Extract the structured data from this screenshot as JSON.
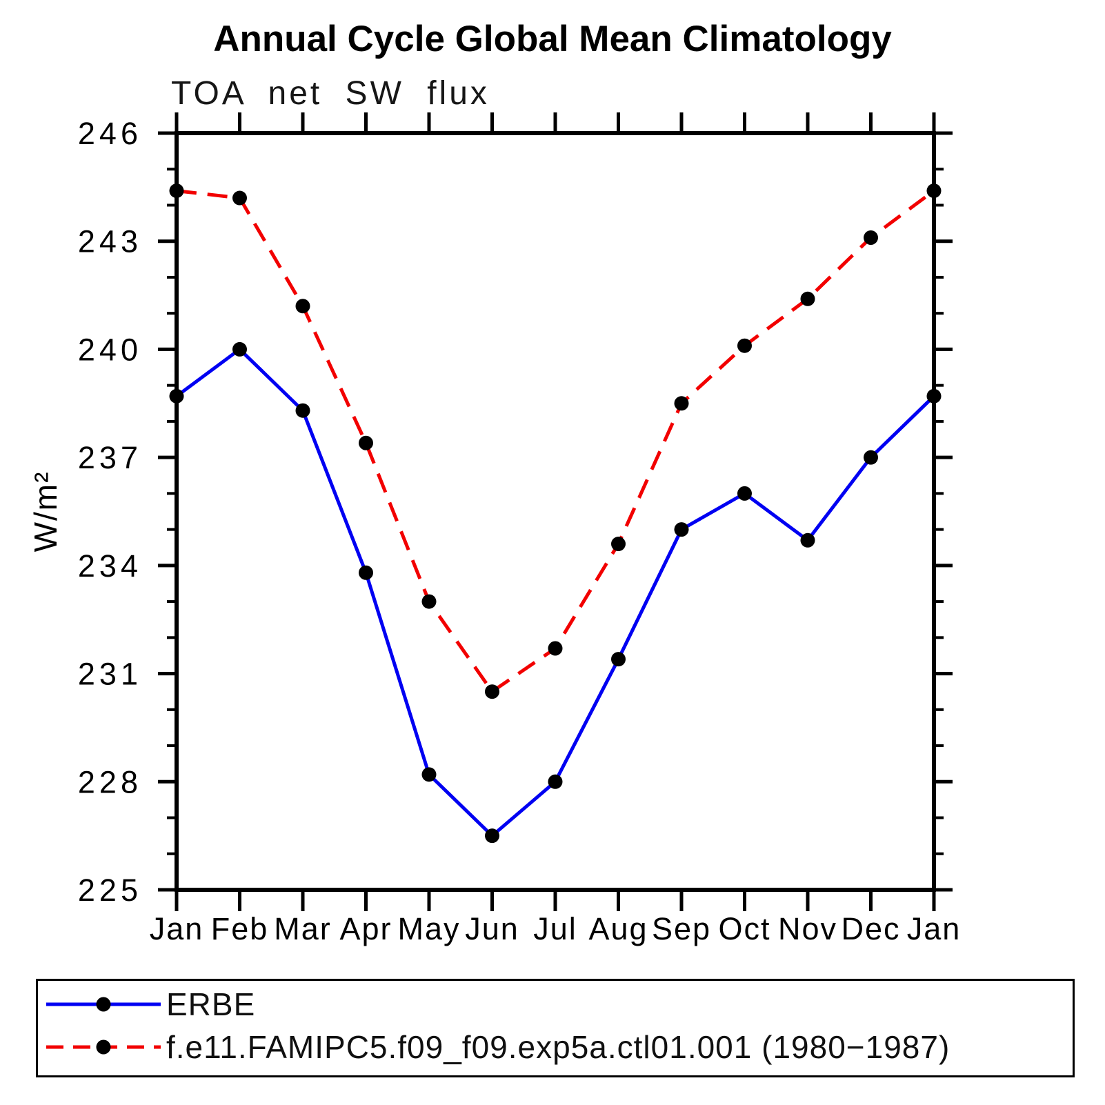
{
  "page": {
    "title": "Annual Cycle Global Mean Climatology",
    "subtitle": "TOA net SW flux"
  },
  "chart_data": {
    "type": "line",
    "title": "Annual Cycle Global Mean Climatology",
    "subtitle": "TOA net SW flux",
    "ylabel": "W/m²",
    "xlabel": "",
    "ylim": [
      225,
      246
    ],
    "ytick_major_step": 3,
    "ytick_minor_step": 1,
    "yticks": [
      225,
      228,
      231,
      234,
      237,
      240,
      243,
      246
    ],
    "categories": [
      "Jan",
      "Feb",
      "Mar",
      "Apr",
      "May",
      "Jun",
      "Jul",
      "Aug",
      "Sep",
      "Oct",
      "Nov",
      "Dec",
      "Jan"
    ],
    "grid": false,
    "legend_position": "bottom-box",
    "series": [
      {
        "name": "ERBE",
        "color": "#0000f2",
        "style": "solid",
        "marker": "circle",
        "marker_color": "#000000",
        "values": [
          238.7,
          240.0,
          238.3,
          233.8,
          228.2,
          226.5,
          228.0,
          231.4,
          235.0,
          236.0,
          234.7,
          237.0,
          238.7
        ]
      },
      {
        "name": "f.e11.FAMIPC5.f09_f09.exp5a.ctl01.001 (1980−1987)",
        "color": "#f20000",
        "style": "dashed",
        "marker": "circle",
        "marker_color": "#000000",
        "values": [
          244.4,
          244.2,
          241.2,
          237.4,
          233.0,
          230.5,
          231.7,
          234.6,
          238.5,
          240.1,
          241.4,
          243.1,
          244.4
        ]
      }
    ]
  }
}
